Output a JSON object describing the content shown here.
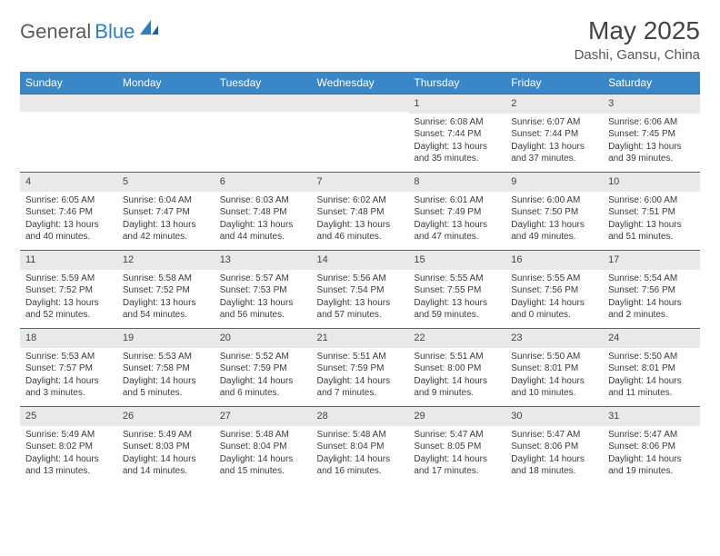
{
  "brand": {
    "part1": "General",
    "part2": "Blue"
  },
  "title": "May 2025",
  "location": "Dashi, Gansu, China",
  "columns": [
    "Sunday",
    "Monday",
    "Tuesday",
    "Wednesday",
    "Thursday",
    "Friday",
    "Saturday"
  ],
  "colors": {
    "header_bg": "#3a87c8",
    "header_text": "#ffffff",
    "daynum_bg": "#e9e9e9",
    "row_border": "#2f6ea5",
    "text": "#3a3a3a",
    "logo_gray": "#5a5a5a",
    "logo_blue": "#2f7ec0"
  },
  "fonts": {
    "month_size_pt": 21,
    "location_size_pt": 11,
    "header_size_pt": 9,
    "body_size_pt": 7.5
  },
  "weeks": [
    [
      {
        "day": "",
        "lines": []
      },
      {
        "day": "",
        "lines": []
      },
      {
        "day": "",
        "lines": []
      },
      {
        "day": "",
        "lines": []
      },
      {
        "day": "1",
        "lines": [
          "Sunrise: 6:08 AM",
          "Sunset: 7:44 PM",
          "Daylight: 13 hours and 35 minutes."
        ]
      },
      {
        "day": "2",
        "lines": [
          "Sunrise: 6:07 AM",
          "Sunset: 7:44 PM",
          "Daylight: 13 hours and 37 minutes."
        ]
      },
      {
        "day": "3",
        "lines": [
          "Sunrise: 6:06 AM",
          "Sunset: 7:45 PM",
          "Daylight: 13 hours and 39 minutes."
        ]
      }
    ],
    [
      {
        "day": "4",
        "lines": [
          "Sunrise: 6:05 AM",
          "Sunset: 7:46 PM",
          "Daylight: 13 hours and 40 minutes."
        ]
      },
      {
        "day": "5",
        "lines": [
          "Sunrise: 6:04 AM",
          "Sunset: 7:47 PM",
          "Daylight: 13 hours and 42 minutes."
        ]
      },
      {
        "day": "6",
        "lines": [
          "Sunrise: 6:03 AM",
          "Sunset: 7:48 PM",
          "Daylight: 13 hours and 44 minutes."
        ]
      },
      {
        "day": "7",
        "lines": [
          "Sunrise: 6:02 AM",
          "Sunset: 7:48 PM",
          "Daylight: 13 hours and 46 minutes."
        ]
      },
      {
        "day": "8",
        "lines": [
          "Sunrise: 6:01 AM",
          "Sunset: 7:49 PM",
          "Daylight: 13 hours and 47 minutes."
        ]
      },
      {
        "day": "9",
        "lines": [
          "Sunrise: 6:00 AM",
          "Sunset: 7:50 PM",
          "Daylight: 13 hours and 49 minutes."
        ]
      },
      {
        "day": "10",
        "lines": [
          "Sunrise: 6:00 AM",
          "Sunset: 7:51 PM",
          "Daylight: 13 hours and 51 minutes."
        ]
      }
    ],
    [
      {
        "day": "11",
        "lines": [
          "Sunrise: 5:59 AM",
          "Sunset: 7:52 PM",
          "Daylight: 13 hours and 52 minutes."
        ]
      },
      {
        "day": "12",
        "lines": [
          "Sunrise: 5:58 AM",
          "Sunset: 7:52 PM",
          "Daylight: 13 hours and 54 minutes."
        ]
      },
      {
        "day": "13",
        "lines": [
          "Sunrise: 5:57 AM",
          "Sunset: 7:53 PM",
          "Daylight: 13 hours and 56 minutes."
        ]
      },
      {
        "day": "14",
        "lines": [
          "Sunrise: 5:56 AM",
          "Sunset: 7:54 PM",
          "Daylight: 13 hours and 57 minutes."
        ]
      },
      {
        "day": "15",
        "lines": [
          "Sunrise: 5:55 AM",
          "Sunset: 7:55 PM",
          "Daylight: 13 hours and 59 minutes."
        ]
      },
      {
        "day": "16",
        "lines": [
          "Sunrise: 5:55 AM",
          "Sunset: 7:56 PM",
          "Daylight: 14 hours and 0 minutes."
        ]
      },
      {
        "day": "17",
        "lines": [
          "Sunrise: 5:54 AM",
          "Sunset: 7:56 PM",
          "Daylight: 14 hours and 2 minutes."
        ]
      }
    ],
    [
      {
        "day": "18",
        "lines": [
          "Sunrise: 5:53 AM",
          "Sunset: 7:57 PM",
          "Daylight: 14 hours and 3 minutes."
        ]
      },
      {
        "day": "19",
        "lines": [
          "Sunrise: 5:53 AM",
          "Sunset: 7:58 PM",
          "Daylight: 14 hours and 5 minutes."
        ]
      },
      {
        "day": "20",
        "lines": [
          "Sunrise: 5:52 AM",
          "Sunset: 7:59 PM",
          "Daylight: 14 hours and 6 minutes."
        ]
      },
      {
        "day": "21",
        "lines": [
          "Sunrise: 5:51 AM",
          "Sunset: 7:59 PM",
          "Daylight: 14 hours and 7 minutes."
        ]
      },
      {
        "day": "22",
        "lines": [
          "Sunrise: 5:51 AM",
          "Sunset: 8:00 PM",
          "Daylight: 14 hours and 9 minutes."
        ]
      },
      {
        "day": "23",
        "lines": [
          "Sunrise: 5:50 AM",
          "Sunset: 8:01 PM",
          "Daylight: 14 hours and 10 minutes."
        ]
      },
      {
        "day": "24",
        "lines": [
          "Sunrise: 5:50 AM",
          "Sunset: 8:01 PM",
          "Daylight: 14 hours and 11 minutes."
        ]
      }
    ],
    [
      {
        "day": "25",
        "lines": [
          "Sunrise: 5:49 AM",
          "Sunset: 8:02 PM",
          "Daylight: 14 hours and 13 minutes."
        ]
      },
      {
        "day": "26",
        "lines": [
          "Sunrise: 5:49 AM",
          "Sunset: 8:03 PM",
          "Daylight: 14 hours and 14 minutes."
        ]
      },
      {
        "day": "27",
        "lines": [
          "Sunrise: 5:48 AM",
          "Sunset: 8:04 PM",
          "Daylight: 14 hours and 15 minutes."
        ]
      },
      {
        "day": "28",
        "lines": [
          "Sunrise: 5:48 AM",
          "Sunset: 8:04 PM",
          "Daylight: 14 hours and 16 minutes."
        ]
      },
      {
        "day": "29",
        "lines": [
          "Sunrise: 5:47 AM",
          "Sunset: 8:05 PM",
          "Daylight: 14 hours and 17 minutes."
        ]
      },
      {
        "day": "30",
        "lines": [
          "Sunrise: 5:47 AM",
          "Sunset: 8:06 PM",
          "Daylight: 14 hours and 18 minutes."
        ]
      },
      {
        "day": "31",
        "lines": [
          "Sunrise: 5:47 AM",
          "Sunset: 8:06 PM",
          "Daylight: 14 hours and 19 minutes."
        ]
      }
    ]
  ]
}
